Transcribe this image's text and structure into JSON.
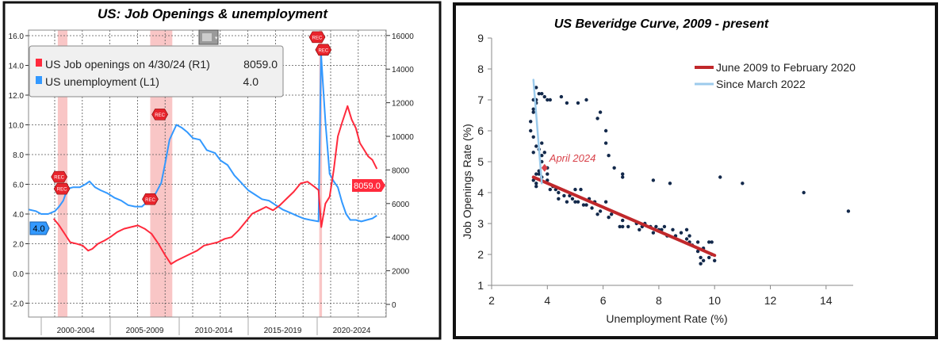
{
  "chart_data": [
    {
      "type": "line",
      "title": "US: Job Openings & unemployment",
      "legend": {
        "placement": "top-left",
        "entries": [
          {
            "label": "US Job openings on 4/30/24 (R1)",
            "value": "8059.0",
            "color": "#ff2a3c"
          },
          {
            "label": "US unemployment (L1)",
            "value": "4.0",
            "color": "#3399ff"
          }
        ]
      },
      "left_axis": {
        "ticks": [
          "16.0",
          "14.0",
          "12.0",
          "10.0",
          "8.0",
          "6.0",
          "4.0",
          "2.0",
          "0.0",
          "-2.0"
        ],
        "range": [
          -2,
          16
        ]
      },
      "right_axis": {
        "ticks": [
          "16000",
          "14000",
          "12000",
          "10000",
          "8000",
          "6000",
          "4000",
          "2000",
          "0"
        ],
        "range": [
          0,
          16000
        ]
      },
      "x_categories": [
        "2000-2004",
        "2005-2009",
        "2010-2014",
        "2015-2019",
        "2020-2024"
      ],
      "x_range": [
        1999.1,
        2025.0
      ],
      "recessions": [
        [
          2001.2,
          2001.9
        ],
        [
          2007.9,
          2009.5
        ],
        [
          2020.15,
          2020.35
        ]
      ],
      "recession_label": "REC",
      "end_labels": {
        "left": "4.0",
        "right": "8059.0"
      },
      "series": [
        {
          "name": "US unemployment (L1)",
          "axis": "left",
          "color": "#3399ff",
          "x": [
            1999.1,
            1999.6,
            2000.0,
            2000.5,
            2001.0,
            2001.3,
            2001.6,
            2001.9,
            2002.3,
            2002.8,
            2003.2,
            2003.5,
            2003.9,
            2004.3,
            2004.8,
            2005.3,
            2005.8,
            2006.3,
            2006.8,
            2007.3,
            2007.9,
            2008.3,
            2008.7,
            2009.0,
            2009.3,
            2009.6,
            2009.8,
            2010.2,
            2010.6,
            2011.0,
            2011.5,
            2012.0,
            2012.6,
            2013.0,
            2013.5,
            2014.0,
            2014.5,
            2015.0,
            2015.5,
            2016.0,
            2016.5,
            2017.0,
            2017.5,
            2018.0,
            2018.5,
            2019.0,
            2019.5,
            2020.1,
            2020.28,
            2020.4,
            2020.6,
            2020.9,
            2021.2,
            2021.5,
            2021.8,
            2022.1,
            2022.4,
            2022.8,
            2023.2,
            2023.6,
            2024.0,
            2024.33
          ],
          "y": [
            4.3,
            4.2,
            4.0,
            4.0,
            4.2,
            4.5,
            4.9,
            5.7,
            5.8,
            5.8,
            6.0,
            6.2,
            5.8,
            5.6,
            5.4,
            5.1,
            4.9,
            4.6,
            4.5,
            4.5,
            5.0,
            5.4,
            6.1,
            7.5,
            9.0,
            9.6,
            10.0,
            9.8,
            9.5,
            9.1,
            9.0,
            8.3,
            8.1,
            7.6,
            7.3,
            6.6,
            6.1,
            5.6,
            5.3,
            5.0,
            4.9,
            4.6,
            4.3,
            4.1,
            3.9,
            3.7,
            3.6,
            3.5,
            14.8,
            13.0,
            10.2,
            6.7,
            6.2,
            5.8,
            4.8,
            4.0,
            3.6,
            3.6,
            3.5,
            3.6,
            3.7,
            3.9
          ]
        },
        {
          "name": "US Job openings (R1)",
          "axis": "right",
          "color": "#ff2a3c",
          "x": [
            2000.9,
            2001.3,
            2001.7,
            2002.1,
            2002.6,
            2003.0,
            2003.4,
            2003.7,
            2004.1,
            2004.6,
            2005.0,
            2005.5,
            2006.0,
            2006.5,
            2007.0,
            2007.5,
            2008.0,
            2008.5,
            2009.0,
            2009.4,
            2009.8,
            2010.3,
            2010.8,
            2011.3,
            2011.8,
            2012.3,
            2012.8,
            2013.3,
            2013.8,
            2014.3,
            2014.8,
            2015.3,
            2015.8,
            2016.3,
            2016.8,
            2017.3,
            2017.8,
            2018.3,
            2018.8,
            2019.3,
            2019.8,
            2020.1,
            2020.3,
            2020.6,
            2020.9,
            2021.2,
            2021.5,
            2021.8,
            2022.2,
            2022.5,
            2022.8,
            2023.1,
            2023.4,
            2023.7,
            2024.0,
            2024.33
          ],
          "y": [
            5100,
            4700,
            4200,
            3700,
            3600,
            3500,
            3200,
            3300,
            3600,
            3800,
            4000,
            4300,
            4500,
            4600,
            4700,
            4500,
            4200,
            3600,
            2900,
            2400,
            2600,
            2800,
            3000,
            3200,
            3500,
            3600,
            3700,
            3900,
            4000,
            4400,
            4900,
            5400,
            5600,
            5800,
            5600,
            5900,
            6300,
            6700,
            7200,
            7300,
            7000,
            6800,
            4600,
            6000,
            6400,
            8000,
            10000,
            10800,
            11800,
            11000,
            10500,
            9600,
            9200,
            8800,
            8600,
            8059
          ]
        }
      ]
    },
    {
      "type": "scatter",
      "title": "US Beveridge Curve, 2009 - present",
      "xlabel": "Unemployment Rate (%)",
      "ylabel": "Job Openings Rate (%)",
      "xlim": [
        2,
        15
      ],
      "ylim": [
        1,
        9
      ],
      "xticks": [
        "2",
        "4",
        "6",
        "8",
        "10",
        "12",
        "14"
      ],
      "yticks": [
        "1",
        "2",
        "3",
        "4",
        "5",
        "6",
        "7",
        "8",
        "9"
      ],
      "legend": {
        "placement": "top-right",
        "entries": [
          {
            "label": "June 2009 to February 2020",
            "color": "#c0282b"
          },
          {
            "label": "Since March 2022",
            "color": "#9ccbec"
          }
        ]
      },
      "annotation": {
        "label": "April 2024",
        "x": 3.9,
        "y": 4.8,
        "color": "#d9434b"
      },
      "trend_lines": [
        {
          "name": "June 2009 to February 2020",
          "from": [
            3.5,
            4.5
          ],
          "to": [
            10.0,
            1.97
          ]
        },
        {
          "name": "Since March 2022",
          "from": [
            3.5,
            7.65
          ],
          "to": [
            3.8,
            4.3
          ]
        }
      ],
      "points": [
        [
          3.4,
          6.3
        ],
        [
          3.4,
          6.0
        ],
        [
          3.5,
          5.8
        ],
        [
          3.5,
          5.3
        ],
        [
          3.5,
          6.7
        ],
        [
          3.5,
          7.0
        ],
        [
          3.6,
          7.4
        ],
        [
          3.6,
          7.0
        ],
        [
          3.6,
          6.9
        ],
        [
          3.5,
          6.6
        ],
        [
          3.6,
          5.5
        ],
        [
          3.7,
          5.4
        ],
        [
          3.7,
          7.2
        ],
        [
          3.8,
          7.2
        ],
        [
          3.9,
          7.1
        ],
        [
          4.0,
          7.0
        ],
        [
          4.1,
          7.0
        ],
        [
          4.5,
          7.1
        ],
        [
          4.7,
          6.9
        ],
        [
          5.1,
          6.9
        ],
        [
          5.4,
          7.0
        ],
        [
          5.8,
          6.4
        ],
        [
          5.9,
          6.6
        ],
        [
          6.1,
          6.0
        ],
        [
          6.1,
          5.6
        ],
        [
          6.2,
          5.2
        ],
        [
          6.4,
          4.8
        ],
        [
          6.7,
          4.6
        ],
        [
          6.7,
          4.5
        ],
        [
          7.8,
          4.4
        ],
        [
          8.4,
          4.3
        ],
        [
          10.2,
          4.5
        ],
        [
          11.0,
          4.3
        ],
        [
          13.2,
          4.0
        ],
        [
          14.8,
          3.4
        ],
        [
          3.8,
          5.6
        ],
        [
          3.8,
          5.2
        ],
        [
          3.9,
          5.3
        ],
        [
          3.8,
          5.0
        ],
        [
          3.5,
          4.4
        ],
        [
          3.6,
          4.6
        ],
        [
          3.6,
          4.2
        ],
        [
          3.6,
          4.3
        ],
        [
          3.7,
          4.6
        ],
        [
          3.7,
          4.7
        ],
        [
          3.8,
          4.5
        ],
        [
          4.0,
          4.8
        ],
        [
          4.0,
          4.6
        ],
        [
          4.0,
          4.4
        ],
        [
          4.1,
          4.1
        ],
        [
          4.2,
          4.2
        ],
        [
          4.3,
          4.1
        ],
        [
          4.4,
          4.0
        ],
        [
          4.4,
          3.8
        ],
        [
          4.6,
          3.9
        ],
        [
          4.7,
          3.7
        ],
        [
          4.8,
          3.9
        ],
        [
          4.9,
          3.8
        ],
        [
          5.0,
          3.7
        ],
        [
          5.0,
          4.1
        ],
        [
          5.1,
          3.7
        ],
        [
          5.2,
          4.1
        ],
        [
          5.3,
          3.6
        ],
        [
          5.4,
          3.6
        ],
        [
          5.5,
          3.8
        ],
        [
          5.6,
          3.5
        ],
        [
          5.7,
          3.7
        ],
        [
          5.8,
          3.3
        ],
        [
          5.9,
          3.4
        ],
        [
          6.1,
          3.7
        ],
        [
          6.2,
          3.2
        ],
        [
          6.3,
          3.3
        ],
        [
          6.6,
          2.9
        ],
        [
          6.7,
          2.9
        ],
        [
          6.7,
          3.1
        ],
        [
          6.9,
          2.9
        ],
        [
          7.2,
          3.0
        ],
        [
          7.3,
          2.8
        ],
        [
          7.4,
          2.9
        ],
        [
          7.5,
          3.0
        ],
        [
          7.7,
          2.9
        ],
        [
          7.8,
          2.7
        ],
        [
          7.9,
          2.9
        ],
        [
          8.0,
          2.8
        ],
        [
          8.1,
          2.8
        ],
        [
          8.2,
          2.9
        ],
        [
          8.3,
          2.6
        ],
        [
          8.5,
          2.8
        ],
        [
          8.6,
          2.6
        ],
        [
          8.8,
          2.7
        ],
        [
          9.0,
          2.8
        ],
        [
          9.0,
          2.5
        ],
        [
          9.1,
          2.6
        ],
        [
          9.1,
          2.4
        ],
        [
          9.2,
          2.3
        ],
        [
          9.4,
          2.4
        ],
        [
          9.4,
          2.1
        ],
        [
          9.5,
          1.9
        ],
        [
          9.5,
          1.7
        ],
        [
          9.6,
          1.8
        ],
        [
          9.6,
          2.2
        ],
        [
          9.8,
          2.4
        ],
        [
          9.8,
          1.9
        ],
        [
          9.9,
          2.4
        ],
        [
          9.9,
          2.0
        ],
        [
          10.0,
          1.8
        ]
      ]
    }
  ]
}
